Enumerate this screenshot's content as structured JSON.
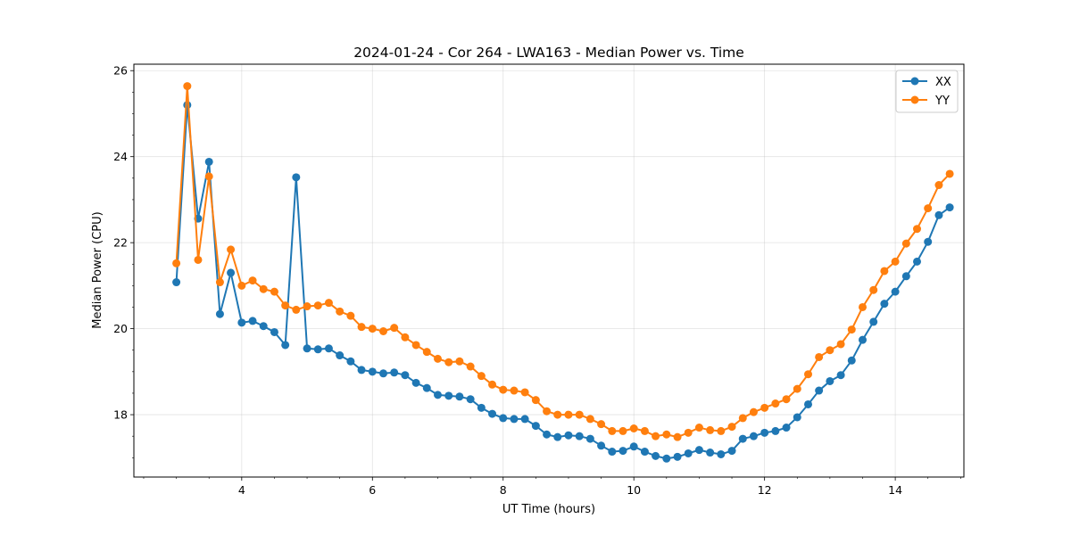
{
  "chart_data": {
    "type": "line",
    "title": "2024-01-24 - Cor 264 - LWA163 - Median Power vs. Time",
    "xlabel": "UT Time (hours)",
    "ylabel": "Median Power (CPU)",
    "xlim": [
      2.35,
      15.05
    ],
    "ylim": [
      16.55,
      26.15
    ],
    "xticks": [
      4,
      6,
      8,
      10,
      12,
      14
    ],
    "yticks": [
      18,
      20,
      22,
      24,
      26
    ],
    "grid": true,
    "legend_position": "top-right",
    "x": [
      3.0,
      3.167,
      3.333,
      3.5,
      3.667,
      3.833,
      4.0,
      4.167,
      4.333,
      4.5,
      4.667,
      4.833,
      5.0,
      5.167,
      5.333,
      5.5,
      5.667,
      5.833,
      6.0,
      6.167,
      6.333,
      6.5,
      6.667,
      6.833,
      7.0,
      7.167,
      7.333,
      7.5,
      7.667,
      7.833,
      8.0,
      8.167,
      8.333,
      8.5,
      8.667,
      8.833,
      9.0,
      9.167,
      9.333,
      9.5,
      9.667,
      9.833,
      10.0,
      10.167,
      10.333,
      10.5,
      10.667,
      10.833,
      11.0,
      11.167,
      11.333,
      11.5,
      11.667,
      11.833,
      12.0,
      12.167,
      12.333,
      12.5,
      12.667,
      12.833,
      13.0,
      13.167,
      13.333,
      13.5,
      13.667,
      13.833,
      14.0,
      14.167,
      14.333,
      14.5,
      14.667,
      14.833
    ],
    "series": [
      {
        "name": "XX",
        "color": "#1f77b4",
        "values": [
          21.08,
          25.2,
          22.56,
          23.88,
          20.34,
          21.3,
          20.14,
          20.18,
          20.06,
          19.92,
          19.62,
          23.52,
          19.54,
          19.52,
          19.54,
          19.38,
          19.24,
          19.04,
          19.0,
          18.96,
          18.98,
          18.92,
          18.74,
          18.62,
          18.46,
          18.44,
          18.42,
          18.36,
          18.16,
          18.02,
          17.92,
          17.9,
          17.9,
          17.74,
          17.54,
          17.48,
          17.52,
          17.5,
          17.44,
          17.28,
          17.14,
          17.16,
          17.26,
          17.14,
          17.04,
          16.98,
          17.02,
          17.1,
          17.18,
          17.12,
          17.08,
          17.16,
          17.44,
          17.5,
          17.58,
          17.62,
          17.7,
          17.94,
          18.24,
          18.56,
          18.78,
          18.92,
          19.26,
          19.74,
          20.16,
          20.58,
          20.86,
          21.22,
          21.56,
          22.02,
          22.64,
          22.82
        ]
      },
      {
        "name": "YY",
        "color": "#ff7f0e",
        "values": [
          21.52,
          25.64,
          21.6,
          23.54,
          21.08,
          21.84,
          21.0,
          21.12,
          20.92,
          20.86,
          20.54,
          20.44,
          20.52,
          20.54,
          20.6,
          20.4,
          20.3,
          20.04,
          20.0,
          19.94,
          20.02,
          19.8,
          19.62,
          19.46,
          19.3,
          19.22,
          19.24,
          19.12,
          18.9,
          18.7,
          18.58,
          18.56,
          18.52,
          18.34,
          18.08,
          18.0,
          18.0,
          18.0,
          17.9,
          17.78,
          17.62,
          17.62,
          17.68,
          17.62,
          17.5,
          17.54,
          17.48,
          17.58,
          17.7,
          17.64,
          17.62,
          17.72,
          17.92,
          18.06,
          18.16,
          18.26,
          18.36,
          18.6,
          18.94,
          19.34,
          19.5,
          19.64,
          19.98,
          20.5,
          20.9,
          21.34,
          21.56,
          21.98,
          22.32,
          22.8,
          23.34,
          23.6
        ]
      }
    ]
  }
}
